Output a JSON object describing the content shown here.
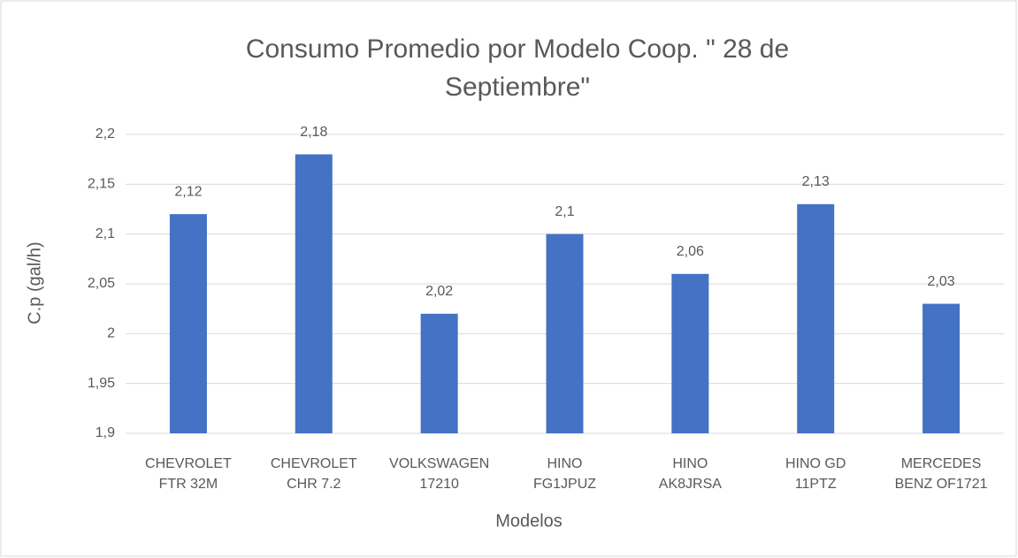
{
  "chart_data": {
    "type": "bar",
    "title": "Consumo Promedio por Modelo Coop. \" 28 de Septiembre\"",
    "x_label": "Modelos",
    "y_label": "C.p (gal/h)",
    "categories": [
      "CHEVROLET FTR 32M",
      "CHEVROLET CHR 7.2",
      "VOLKSWAGEN 17210",
      "HINO FG1JPUZ",
      "HINO AK8JRSA",
      "HINO GD 11PTZ",
      "MERCEDES BENZ OF1721"
    ],
    "values": [
      2.12,
      2.18,
      2.02,
      2.1,
      2.06,
      2.13,
      2.03
    ],
    "value_labels": [
      "2,12",
      "2,18",
      "2,02",
      "2,1",
      "2,06",
      "2,13",
      "2,03"
    ],
    "color": "#4472c4",
    "ylim": [
      1.9,
      2.2
    ],
    "yticks": [
      {
        "value": 1.9,
        "label": "1,9"
      },
      {
        "value": 1.95,
        "label": "1,95"
      },
      2,
      {
        "value": 2.05,
        "label": "2,05"
      },
      {
        "value": 2.1,
        "label": "2,1"
      },
      {
        "value": 2.15,
        "label": "2,15"
      },
      {
        "value": 2.2,
        "label": "2,2"
      }
    ],
    "grid": true
  }
}
